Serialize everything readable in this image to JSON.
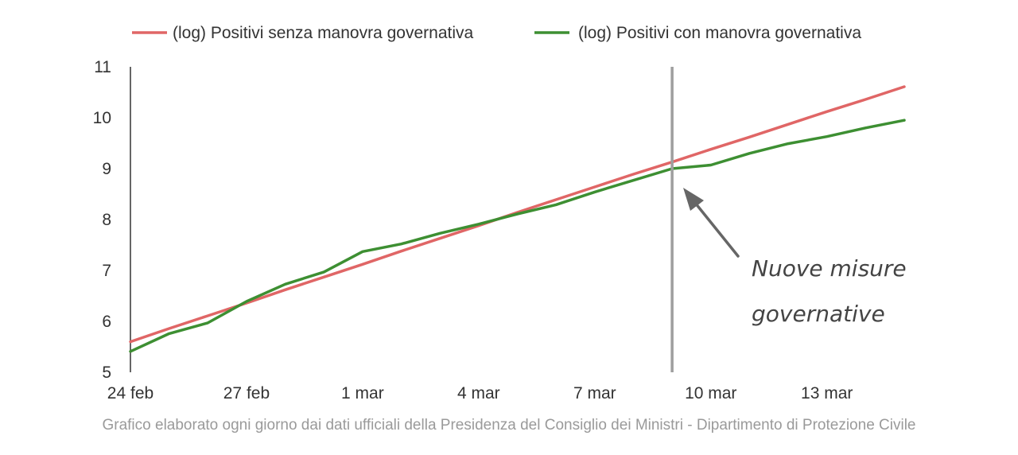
{
  "chart_data": {
    "type": "line",
    "x_categories": [
      "24 feb",
      "25 feb",
      "26 feb",
      "27 feb",
      "28 feb",
      "29 feb",
      "1 mar",
      "2 mar",
      "3 mar",
      "4 mar",
      "5 mar",
      "6 mar",
      "7 mar",
      "8 mar",
      "9 mar",
      "10 mar",
      "11 mar",
      "12 mar",
      "13 mar",
      "14 mar",
      "15 mar"
    ],
    "x_tick_labels": [
      "24 feb",
      "27 feb",
      "1 mar",
      "4 mar",
      "7 mar",
      "10 mar",
      "13 mar"
    ],
    "y_ticks": [
      5,
      6,
      7,
      8,
      9,
      10,
      11
    ],
    "ylim": [
      5,
      11
    ],
    "series": [
      {
        "name": "(log) Positivi senza manovra governativa",
        "color": "#e06666",
        "values": [
          5.6,
          5.86,
          6.11,
          6.36,
          6.62,
          6.87,
          7.12,
          7.38,
          7.63,
          7.88,
          8.14,
          8.39,
          8.64,
          8.89,
          9.13,
          9.38,
          9.62,
          9.87,
          10.12,
          10.36,
          10.61
        ]
      },
      {
        "name": "(log) Positivi con manovra governativa",
        "color": "#3d8f32",
        "values": [
          5.41,
          5.76,
          5.97,
          6.39,
          6.73,
          6.97,
          7.37,
          7.52,
          7.73,
          7.91,
          8.11,
          8.29,
          8.54,
          8.77,
          9.0,
          9.07,
          9.3,
          9.49,
          9.63,
          9.8,
          9.95
        ]
      }
    ],
    "marker_line": {
      "x": "9 mar",
      "color": "#9e9e9e"
    },
    "annotation": {
      "line1": "Nuove misure",
      "line2": "governative"
    },
    "legend_position": "top",
    "grid": false,
    "footer": "Grafico elaborato ogni giorno dai dati ufficiali della Presidenza del Consiglio dei Ministri - Dipartimento di Protezione Civile"
  }
}
